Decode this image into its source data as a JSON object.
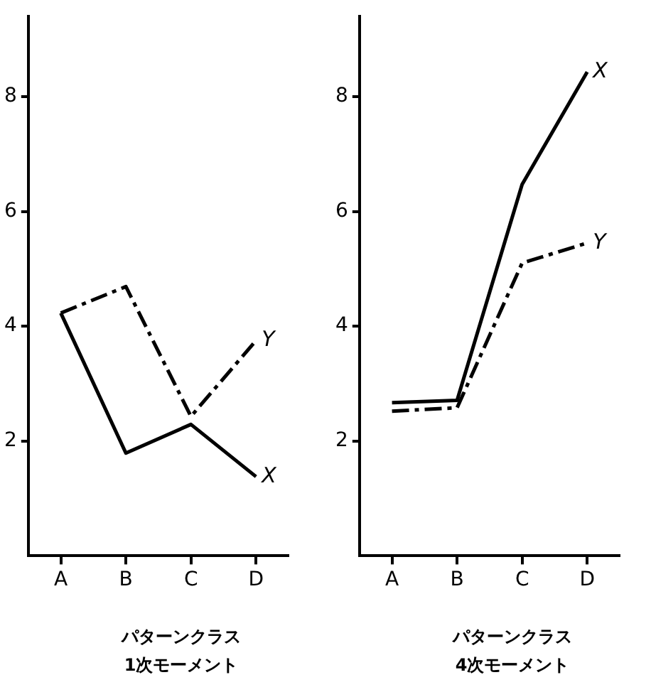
{
  "chart_data": [
    {
      "type": "line",
      "xlabel": "パターンクラス\n1次モーメント",
      "categories": [
        "A",
        "B",
        "C",
        "D"
      ],
      "series": [
        {
          "name": "X",
          "color": "#000000",
          "line_style": "solid",
          "values": [
            4.23,
            1.79,
            2.29,
            1.38
          ]
        },
        {
          "name": "Y",
          "color": "#000000",
          "line_style": "dashed",
          "values": [
            4.23,
            4.69,
            2.43,
            3.75
          ]
        }
      ],
      "ylim": [
        0,
        9.4
      ],
      "yticks": [
        2,
        4,
        6,
        8
      ],
      "grid": false,
      "legend": false,
      "marker": "none"
    },
    {
      "type": "line",
      "xlabel": "パターンクラス\n4次モーメント",
      "categories": [
        "A",
        "B",
        "C",
        "D"
      ],
      "series": [
        {
          "name": "X",
          "color": "#000000",
          "line_style": "solid",
          "values": [
            2.67,
            2.71,
            6.47,
            8.43
          ]
        },
        {
          "name": "Y",
          "color": "#000000",
          "line_style": "dashed",
          "values": [
            2.52,
            2.58,
            5.1,
            5.45
          ]
        }
      ],
      "ylim": [
        0,
        9.4
      ],
      "yticks": [
        2,
        4,
        6,
        8
      ],
      "grid": false,
      "legend": false,
      "marker": "none"
    }
  ]
}
